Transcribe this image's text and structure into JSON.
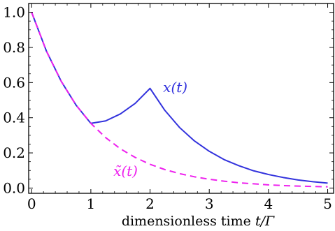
{
  "chart_data": {
    "type": "line",
    "xlabel_prefix": "dimensionless time ",
    "xlabel_math": "t/Γ",
    "xlim": [
      -0.05,
      5.1
    ],
    "ylim": [
      -0.03,
      1.05
    ],
    "x_ticks": [
      0,
      1,
      2,
      3,
      4,
      5
    ],
    "y_ticks": [
      0.0,
      0.2,
      0.4,
      0.6,
      0.8,
      1.0
    ],
    "x_tick_labels": [
      "0",
      "1",
      "2",
      "3",
      "4",
      "5"
    ],
    "y_tick_labels": [
      "0.0",
      "0.2",
      "0.4",
      "0.6",
      "0.8",
      "1.0"
    ],
    "grid": false,
    "series": [
      {
        "name": "x(t)",
        "color": "#3333dd",
        "style": "solid",
        "x": [
          0,
          0.25,
          0.5,
          0.75,
          1.0,
          1.25,
          1.5,
          1.75,
          2.0,
          2.25,
          2.5,
          2.75,
          3.0,
          3.25,
          3.5,
          3.75,
          4.0,
          4.25,
          4.5,
          4.75,
          5.0
        ],
        "y": [
          1.0,
          0.779,
          0.607,
          0.472,
          0.368,
          0.382,
          0.422,
          0.482,
          0.567,
          0.442,
          0.344,
          0.268,
          0.209,
          0.162,
          0.127,
          0.098,
          0.077,
          0.06,
          0.046,
          0.036,
          0.028
        ]
      },
      {
        "name": "x̃(t)",
        "color": "#ee22ee",
        "style": "dashed",
        "x": [
          0,
          0.25,
          0.5,
          0.75,
          1.0,
          1.25,
          1.5,
          1.75,
          2.0,
          2.25,
          2.5,
          2.75,
          3.0,
          3.25,
          3.5,
          3.75,
          4.0,
          4.25,
          4.5,
          4.75,
          5.0
        ],
        "y": [
          1.0,
          0.779,
          0.607,
          0.472,
          0.368,
          0.287,
          0.223,
          0.174,
          0.135,
          0.105,
          0.082,
          0.064,
          0.05,
          0.039,
          0.03,
          0.024,
          0.018,
          0.014,
          0.011,
          0.009,
          0.007
        ]
      }
    ],
    "annotations": [
      {
        "text_math": "x(t)",
        "color": "#3333dd",
        "x": 2.22,
        "y": 0.545
      },
      {
        "text_math": "x̃(t)",
        "color": "#ee22ee",
        "x": 1.38,
        "y": 0.07
      }
    ]
  }
}
